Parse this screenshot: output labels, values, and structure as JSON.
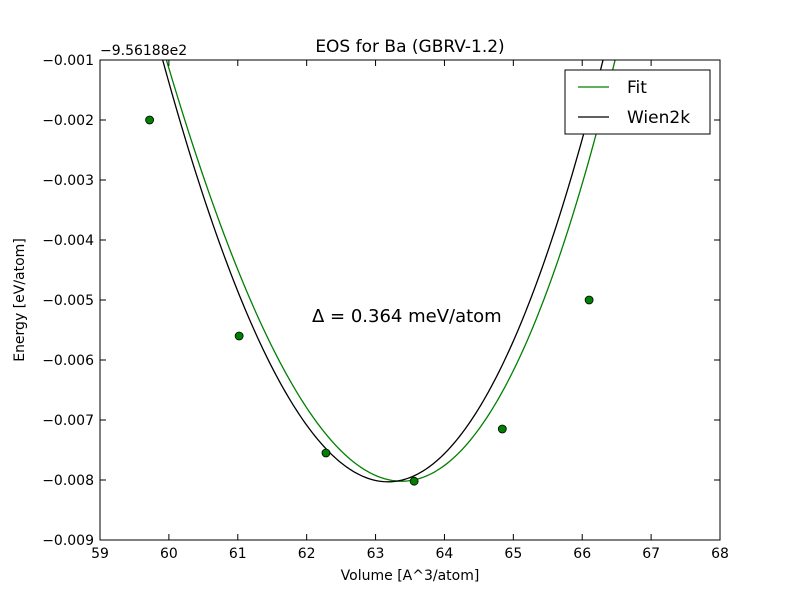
{
  "chart_data": {
    "type": "line",
    "title": "EOS for Ba (GBRV-1.2)",
    "xlabel": "Volume [A^3/atom]",
    "ylabel": "Energy [eV/atom]",
    "y_offset_label": "−9.56188e2",
    "xlim": [
      59,
      68
    ],
    "ylim": [
      -0.009,
      -0.001
    ],
    "x_ticks": [
      59,
      60,
      61,
      62,
      63,
      64,
      65,
      66,
      67,
      68
    ],
    "x_tick_labels": [
      "59",
      "60",
      "61",
      "62",
      "63",
      "64",
      "65",
      "66",
      "67",
      "68"
    ],
    "y_ticks": [
      -0.009,
      -0.008,
      -0.007,
      -0.006,
      -0.005,
      -0.004,
      -0.003,
      -0.002,
      -0.001
    ],
    "y_tick_labels": [
      "−0.009",
      "−0.008",
      "−0.007",
      "−0.006",
      "−0.005",
      "−0.004",
      "−0.003",
      "−0.002",
      "−0.001"
    ],
    "grid": false,
    "legend_position": "top-right",
    "annotation": "Δ = 0.364 meV/atom",
    "series": [
      {
        "name": "Fit",
        "color": "#008000",
        "style": "line",
        "x_range": [
          59.72,
          67.3
        ],
        "curve": {
          "E0": -0.00802,
          "V0": 63.38,
          "a": 0.00067,
          "b": 2e-05
        }
      },
      {
        "name": "Wien2k",
        "color": "#000000",
        "style": "line",
        "x_range": [
          59.72,
          67.35
        ],
        "curve": {
          "E0": -0.00803,
          "V0": 63.18,
          "a": 0.00069,
          "b": 1e-05
        }
      }
    ],
    "points": {
      "color": "#008000",
      "x": [
        59.72,
        61.02,
        62.28,
        63.56,
        64.84,
        66.1
      ],
      "y": [
        -0.002,
        -0.0056,
        -0.00755,
        -0.00802,
        -0.00715,
        -0.005
      ]
    }
  }
}
